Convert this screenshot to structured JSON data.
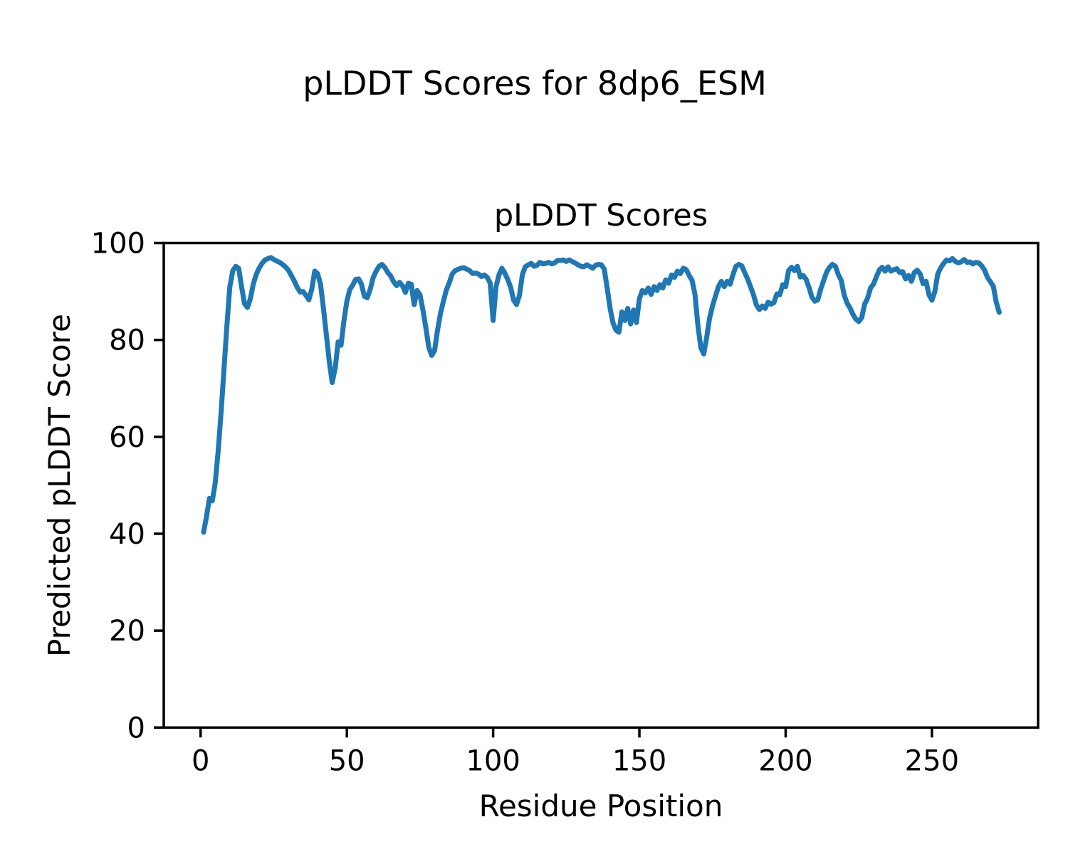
{
  "figure": {
    "suptitle": "pLDDT Scores for 8dp6_ESM",
    "background": "#ffffff",
    "text_color": "#000000"
  },
  "chart_data": {
    "type": "line",
    "title": "pLDDT Scores",
    "xlabel": "Residue Position",
    "ylabel": "Predicted pLDDT Score",
    "xlim": [
      -12.6,
      286.3
    ],
    "ylim": [
      0,
      100
    ],
    "xticks": [
      0,
      50,
      100,
      150,
      200,
      250
    ],
    "yticks": [
      0,
      20,
      40,
      60,
      80,
      100
    ],
    "grid": false,
    "legend": "none",
    "series": [
      {
        "name": "pLDDT",
        "color": "#1f77b4",
        "line_width": 7,
        "x": [
          1,
          2,
          3,
          4,
          5,
          6,
          7,
          8,
          9,
          10,
          11,
          12,
          13,
          14,
          15,
          16,
          17,
          18,
          19,
          20,
          21,
          22,
          23,
          24,
          25,
          26,
          27,
          28,
          29,
          30,
          31,
          32,
          33,
          34,
          35,
          36,
          37,
          38,
          39,
          40,
          41,
          42,
          43,
          44,
          45,
          46,
          47,
          48,
          49,
          50,
          51,
          52,
          53,
          54,
          55,
          56,
          57,
          58,
          59,
          60,
          61,
          62,
          63,
          64,
          65,
          66,
          67,
          68,
          69,
          70,
          71,
          72,
          73,
          74,
          75,
          76,
          77,
          78,
          79,
          80,
          81,
          82,
          83,
          84,
          85,
          86,
          87,
          88,
          89,
          90,
          91,
          92,
          93,
          94,
          95,
          96,
          97,
          98,
          99,
          100,
          101,
          102,
          103,
          104,
          105,
          106,
          107,
          108,
          109,
          110,
          111,
          112,
          113,
          114,
          115,
          116,
          117,
          118,
          119,
          120,
          121,
          122,
          123,
          124,
          125,
          126,
          127,
          128,
          129,
          130,
          131,
          132,
          133,
          134,
          135,
          136,
          137,
          138,
          139,
          140,
          141,
          142,
          143,
          144,
          145,
          146,
          147,
          148,
          149,
          150,
          151,
          152,
          153,
          154,
          155,
          156,
          157,
          158,
          159,
          160,
          161,
          162,
          163,
          164,
          165,
          166,
          167,
          168,
          169,
          170,
          171,
          172,
          173,
          174,
          175,
          176,
          177,
          178,
          179,
          180,
          181,
          182,
          183,
          184,
          185,
          186,
          187,
          188,
          189,
          190,
          191,
          192,
          193,
          194,
          195,
          196,
          197,
          198,
          199,
          200,
          201,
          202,
          203,
          204,
          205,
          206,
          207,
          208,
          209,
          210,
          211,
          212,
          213,
          214,
          215,
          216,
          217,
          218,
          219,
          220,
          221,
          222,
          223,
          224,
          225,
          226,
          227,
          228,
          229,
          230,
          231,
          232,
          233,
          234,
          235,
          236,
          237,
          238,
          239,
          240,
          241,
          242,
          243,
          244,
          245,
          246,
          247,
          248,
          249,
          250,
          251,
          252,
          253,
          254,
          255,
          256,
          257,
          258,
          259,
          260,
          261,
          262,
          263,
          264,
          265,
          266,
          267,
          268,
          269,
          270,
          271,
          272,
          273
        ],
        "y": [
          40.3,
          43.5,
          47.3,
          46.8,
          50.5,
          57.0,
          65.0,
          74.0,
          83.0,
          91.0,
          94.3,
          95.2,
          94.8,
          91.0,
          87.5,
          86.7,
          88.5,
          91.5,
          93.5,
          94.8,
          95.8,
          96.5,
          96.8,
          97.0,
          96.6,
          96.3,
          96.0,
          95.6,
          95.1,
          94.4,
          93.3,
          92.2,
          90.9,
          89.9,
          90.0,
          89.2,
          88.3,
          90.5,
          94.2,
          93.7,
          91.5,
          86.5,
          81.0,
          75.5,
          71.2,
          74.2,
          79.6,
          78.9,
          84.0,
          88.0,
          90.4,
          91.3,
          92.5,
          92.6,
          91.5,
          89.0,
          88.7,
          90.5,
          92.9,
          94.2,
          95.2,
          95.6,
          94.9,
          93.9,
          93.2,
          92.0,
          91.2,
          91.9,
          91.2,
          89.8,
          91.7,
          91.5,
          87.3,
          90.2,
          89.3,
          86.2,
          82.5,
          78.5,
          76.8,
          77.8,
          82.0,
          85.5,
          88.0,
          90.3,
          91.8,
          93.6,
          94.3,
          94.6,
          94.8,
          94.9,
          94.6,
          94.3,
          93.7,
          93.8,
          93.6,
          93.1,
          93.4,
          92.9,
          91.7,
          84.0,
          91.0,
          93.4,
          94.8,
          93.8,
          92.5,
          90.8,
          88.2,
          87.3,
          89.2,
          93.5,
          95.1,
          95.5,
          95.8,
          95.2,
          95.4,
          96.0,
          95.7,
          95.8,
          96.0,
          95.7,
          95.9,
          96.4,
          96.4,
          96.5,
          96.2,
          96.5,
          96.2,
          95.9,
          95.5,
          95.2,
          95.1,
          95.5,
          95.2,
          94.8,
          95.4,
          95.6,
          95.5,
          94.6,
          90.7,
          86.5,
          83.5,
          82.0,
          81.6,
          85.8,
          84.0,
          86.5,
          83.3,
          86.2,
          83.6,
          88.5,
          90.2,
          89.7,
          90.7,
          89.4,
          91.0,
          90.2,
          91.4,
          90.7,
          92.4,
          91.7,
          93.4,
          92.9,
          94.2,
          93.7,
          94.8,
          94.5,
          93.3,
          92.3,
          89.4,
          83.0,
          78.4,
          77.1,
          80.5,
          84.5,
          87.0,
          89.0,
          91.0,
          92.1,
          91.0,
          92.1,
          91.5,
          93.5,
          95.2,
          95.6,
          95.3,
          93.9,
          92.6,
          91.0,
          89.3,
          87.2,
          86.3,
          87.0,
          86.5,
          87.8,
          87.4,
          87.7,
          89.5,
          89.3,
          91.4,
          91.0,
          94.3,
          95.0,
          94.3,
          95.2,
          93.0,
          93.3,
          92.5,
          90.8,
          88.8,
          88.0,
          88.3,
          90.5,
          92.3,
          94.0,
          95.0,
          95.6,
          95.2,
          93.5,
          92.3,
          89.3,
          87.6,
          86.6,
          85.3,
          84.3,
          83.8,
          84.6,
          87.4,
          88.6,
          90.7,
          91.5,
          93.0,
          94.4,
          95.0,
          94.2,
          95.1,
          94.2,
          94.5,
          94.7,
          93.9,
          94.1,
          92.6,
          93.3,
          92.1,
          93.9,
          94.4,
          93.6,
          91.6,
          92.1,
          89.3,
          88.2,
          90.0,
          93.6,
          94.9,
          95.8,
          96.5,
          96.3,
          96.8,
          96.2,
          95.9,
          96.1,
          96.6,
          96.0,
          96.1,
          95.7,
          96.0,
          95.9,
          95.3,
          94.4,
          92.9,
          92.0,
          91.1,
          87.8,
          85.7
        ]
      }
    ]
  }
}
